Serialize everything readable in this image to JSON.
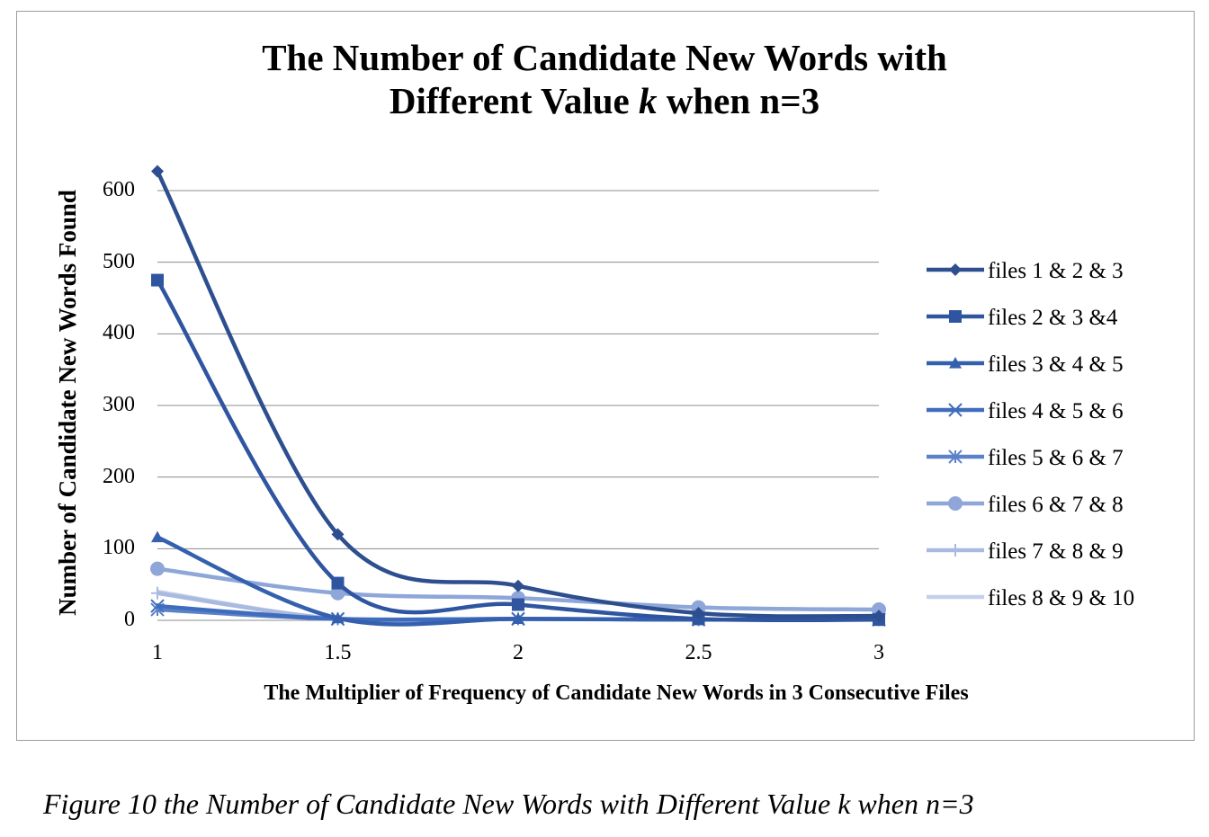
{
  "figure": {
    "caption": "Figure 10 the Number of Candidate New Words with Different Value k when n=3"
  },
  "chart_data": {
    "type": "line",
    "title_line1": "The Number of Candidate New Words with",
    "title_line2_pre": "Different Value ",
    "title_line2_k": "k",
    "title_line2_post": " when n=3",
    "xlabel": "The Multiplier of Frequency of Candidate New Words in 3 Consecutive Files",
    "ylabel": "Number of Candidate New Words Found",
    "x": [
      1,
      1.5,
      2,
      2.5,
      3
    ],
    "x_tick_labels": [
      "1",
      "1.5",
      "2",
      "2.5",
      "3"
    ],
    "y_ticks": [
      0,
      100,
      200,
      300,
      400,
      500,
      600
    ],
    "y_tick_labels": [
      "0",
      "100",
      "200",
      "300",
      "400",
      "500",
      "600"
    ],
    "xlim": [
      1,
      3
    ],
    "ylim": [
      0,
      600
    ],
    "grid": "horizontal",
    "smooth": true,
    "legend_position": "right",
    "series": [
      {
        "name": "files 1 & 2 & 3",
        "values": [
          627,
          120,
          48,
          10,
          6
        ],
        "color": "#2e4f8f",
        "marker": "diamond"
      },
      {
        "name": "files 2 & 3 &4",
        "values": [
          475,
          52,
          22,
          2,
          1
        ],
        "color": "#2f55a0",
        "marker": "square"
      },
      {
        "name": "files 3 & 4 & 5",
        "values": [
          116,
          3,
          2,
          1,
          1
        ],
        "color": "#3560ae",
        "marker": "triangle"
      },
      {
        "name": "files 4 & 5 & 6",
        "values": [
          20,
          2,
          2,
          1,
          1
        ],
        "color": "#3f6cbc",
        "marker": "x"
      },
      {
        "name": "files 5 & 6 & 7",
        "values": [
          15,
          2,
          2,
          1,
          1
        ],
        "color": "#5b82c9",
        "marker": "star"
      },
      {
        "name": "files 6 & 7 & 8",
        "values": [
          72,
          38,
          31,
          18,
          15
        ],
        "color": "#8ea6d8",
        "marker": "circle"
      },
      {
        "name": "files 7 & 8 & 9",
        "values": [
          38,
          2,
          2,
          1,
          1
        ],
        "color": "#a9b9e0",
        "marker": "plus"
      },
      {
        "name": "files 8 & 9 & 10",
        "values": [
          40,
          2,
          2,
          1,
          1
        ],
        "color": "#c5d0ea",
        "marker": "none"
      }
    ]
  }
}
